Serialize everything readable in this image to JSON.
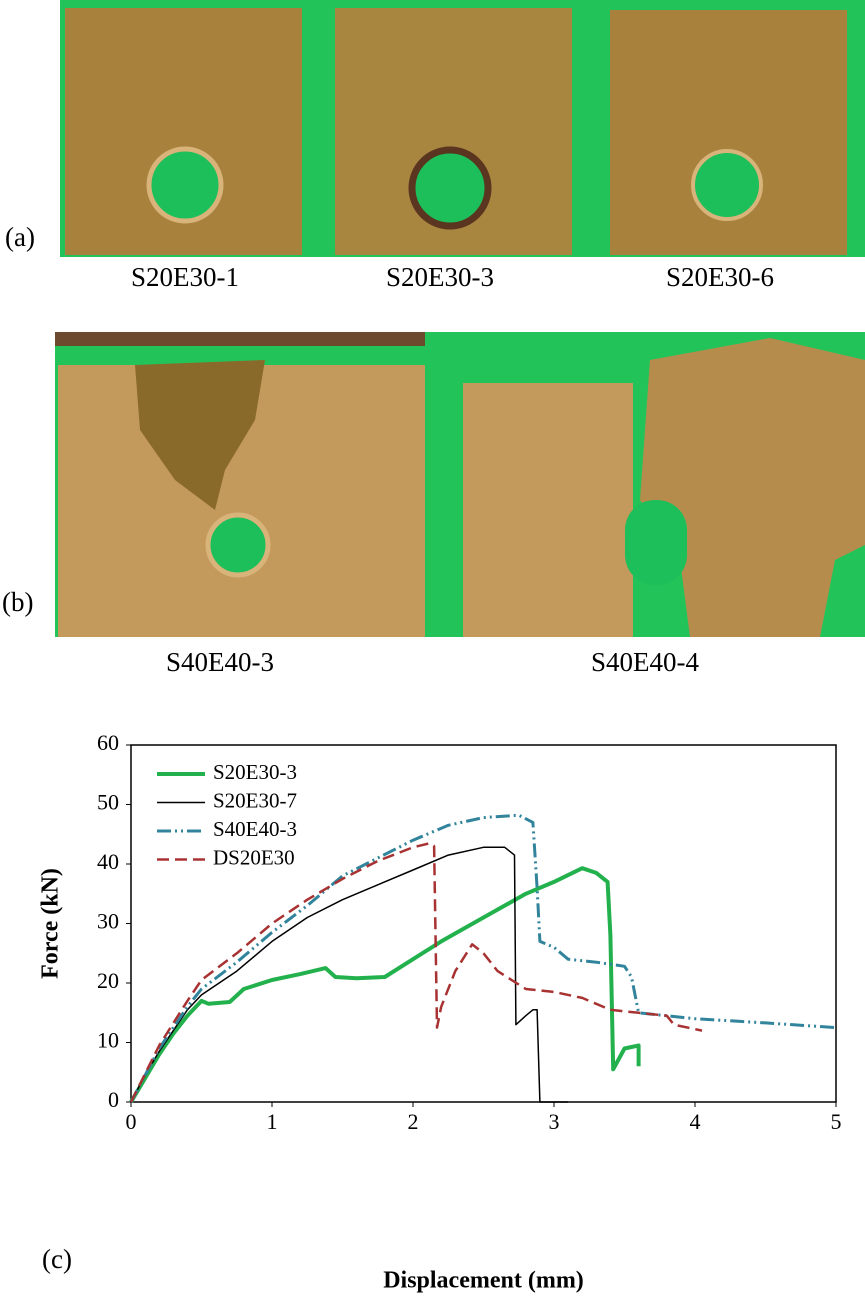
{
  "photo_panels": [
    {
      "label": "(a)",
      "samples": [
        "S20E30-1",
        "S20E30-3",
        "S20E30-6"
      ]
    },
    {
      "label": "(b)",
      "samples": [
        "S40E40-3",
        "S40E40-4"
      ]
    }
  ],
  "chart_data": {
    "type": "line",
    "panel_label": "(c)",
    "x_label": "Displacement (mm)",
    "y_label": "Force (kN)",
    "xlim": [
      0,
      5
    ],
    "ylim": [
      0,
      60
    ],
    "xticks": [
      0,
      1,
      2,
      3,
      4,
      5
    ],
    "yticks": [
      0,
      10,
      20,
      30,
      40,
      50,
      60
    ],
    "legend": "upper left",
    "series": [
      {
        "name": "S20E30-3",
        "color": "#22b14c",
        "line_style": "solid",
        "linewidth": 4,
        "x": [
          0,
          0.1,
          0.2,
          0.3,
          0.4,
          0.5,
          0.55,
          0.7,
          0.8,
          1.0,
          1.2,
          1.38,
          1.45,
          1.6,
          1.8,
          2.0,
          2.2,
          2.5,
          2.8,
          3.0,
          3.2,
          3.3,
          3.38,
          3.4,
          3.42,
          3.5,
          3.6,
          3.6
        ],
        "values": [
          0,
          4,
          8,
          11.5,
          14.5,
          17,
          16.5,
          16.8,
          19,
          20.5,
          21.5,
          22.5,
          21,
          20.8,
          21,
          24,
          27,
          31,
          35,
          37,
          39.3,
          38.5,
          37,
          28,
          5.5,
          9,
          9.5,
          6
        ]
      },
      {
        "name": "S20E30-7",
        "color": "#000000",
        "line_style": "solid",
        "linewidth": 1.5,
        "x": [
          0,
          0.1,
          0.2,
          0.3,
          0.4,
          0.5,
          0.75,
          1,
          1.25,
          1.5,
          1.75,
          2,
          2.25,
          2.5,
          2.65,
          2.72,
          2.73,
          2.8,
          2.85,
          2.88,
          2.9,
          3.1
        ],
        "values": [
          0,
          4.5,
          8.5,
          12,
          15.5,
          18,
          22,
          27,
          31,
          34,
          36.5,
          39,
          41.5,
          42.8,
          42.8,
          41.5,
          13,
          14.5,
          15.5,
          15.5,
          0,
          0
        ]
      },
      {
        "name": "S40E40-3",
        "color": "#31849b",
        "line_style": "dashdot",
        "linewidth": 3,
        "x": [
          0,
          0.2,
          0.4,
          0.5,
          0.75,
          1,
          1.25,
          1.5,
          1.75,
          2,
          2.25,
          2.5,
          2.75,
          2.85,
          2.88,
          2.9,
          3.0,
          3.1,
          3.3,
          3.5,
          3.55,
          3.6,
          4,
          4.5,
          5
        ],
        "values": [
          0,
          9,
          16,
          19,
          23.5,
          28.5,
          33,
          38,
          41,
          44,
          46.5,
          47.8,
          48.2,
          47,
          36,
          27,
          26,
          24,
          23.5,
          22.8,
          21,
          15,
          14,
          13.3,
          12.5
        ]
      },
      {
        "name": "DS20E30",
        "color": "#a83232",
        "line_style": "dashed",
        "linewidth": 2.5,
        "x": [
          0,
          0.2,
          0.4,
          0.5,
          0.75,
          1,
          1.25,
          1.5,
          1.75,
          2,
          2.12,
          2.15,
          2.17,
          2.2,
          2.3,
          2.42,
          2.5,
          2.6,
          2.8,
          3,
          3.2,
          3.4,
          3.6,
          3.8,
          3.85,
          4.05
        ],
        "values": [
          0,
          9.5,
          17,
          20.5,
          25,
          30,
          34,
          37.5,
          40.5,
          42.8,
          43.5,
          43,
          12.5,
          16,
          22,
          26.5,
          25,
          22,
          19,
          18.5,
          17.5,
          15.5,
          15,
          14.5,
          13,
          12
        ]
      }
    ]
  }
}
